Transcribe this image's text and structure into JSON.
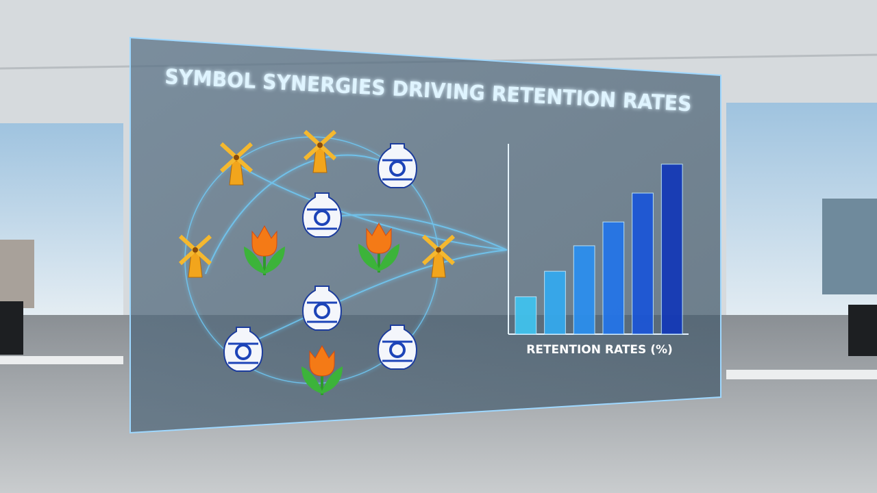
{
  "chart_data": {
    "type": "bar",
    "title": "SYMBOL SYNERGIES DRIVING RETENTION RATES",
    "x_label": "RETENTION RATES (%)",
    "categories": [
      null,
      null,
      null,
      null,
      null,
      null
    ],
    "values": [
      22,
      37,
      52,
      66,
      83,
      100
    ],
    "colors": [
      "#3fc4f0",
      "#33aaf0",
      "#2a8ff0",
      "#2274ea",
      "#1a55d8",
      "#1238b8"
    ],
    "ylim": [
      0,
      112
    ]
  }
}
